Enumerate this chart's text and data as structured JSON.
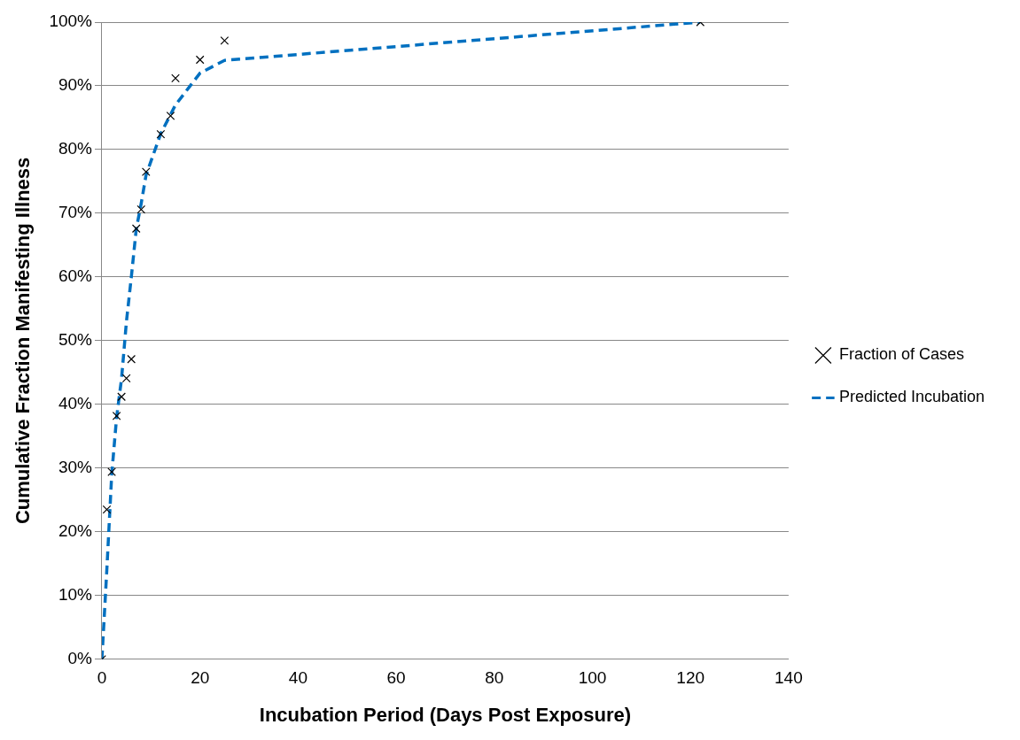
{
  "chart_data": {
    "type": "scatter",
    "xlabel": "Incubation Period (Days Post Exposure)",
    "ylabel": "Cumulative Fraction Manifesting Illness",
    "xlim": [
      0,
      140
    ],
    "xticks": [
      0,
      20,
      40,
      60,
      80,
      100,
      120,
      140
    ],
    "ylim": [
      0,
      100
    ],
    "yticks": [
      {
        "value": 0,
        "label": "0%"
      },
      {
        "value": 10,
        "label": "10%"
      },
      {
        "value": 20,
        "label": "20%"
      },
      {
        "value": 30,
        "label": "30%"
      },
      {
        "value": 40,
        "label": "40%"
      },
      {
        "value": 50,
        "label": "50%"
      },
      {
        "value": 60,
        "label": "60%"
      },
      {
        "value": 70,
        "label": "70%"
      },
      {
        "value": 80,
        "label": "80%"
      },
      {
        "value": 90,
        "label": "90%"
      },
      {
        "value": 100,
        "label": "100%"
      }
    ],
    "grid": "y",
    "legend": "right",
    "series": [
      {
        "name": "Fraction of Cases",
        "color": "#000000",
        "marker": "cross",
        "x": [
          0,
          1,
          2,
          3,
          4,
          5,
          6,
          7,
          8,
          9,
          12,
          14,
          15,
          20,
          25,
          122
        ],
        "values": [
          0,
          23.5,
          29.4,
          38.2,
          41.2,
          44.1,
          47.1,
          67.6,
          70.6,
          76.5,
          82.4,
          85.3,
          91.2,
          94.1,
          97.1,
          100
        ]
      },
      {
        "name": "Predicted Incubation",
        "type": "line",
        "color": "#0070c0",
        "marker": "none",
        "line_style": "dashed",
        "x": [
          0,
          1,
          2,
          3,
          4,
          5,
          6,
          7,
          8,
          9,
          12,
          14,
          15,
          20,
          25,
          122
        ],
        "values": [
          0,
          14,
          29,
          38,
          44,
          53,
          60,
          67.5,
          71.5,
          76,
          82.5,
          85.5,
          87,
          92,
          94,
          100
        ]
      }
    ]
  }
}
